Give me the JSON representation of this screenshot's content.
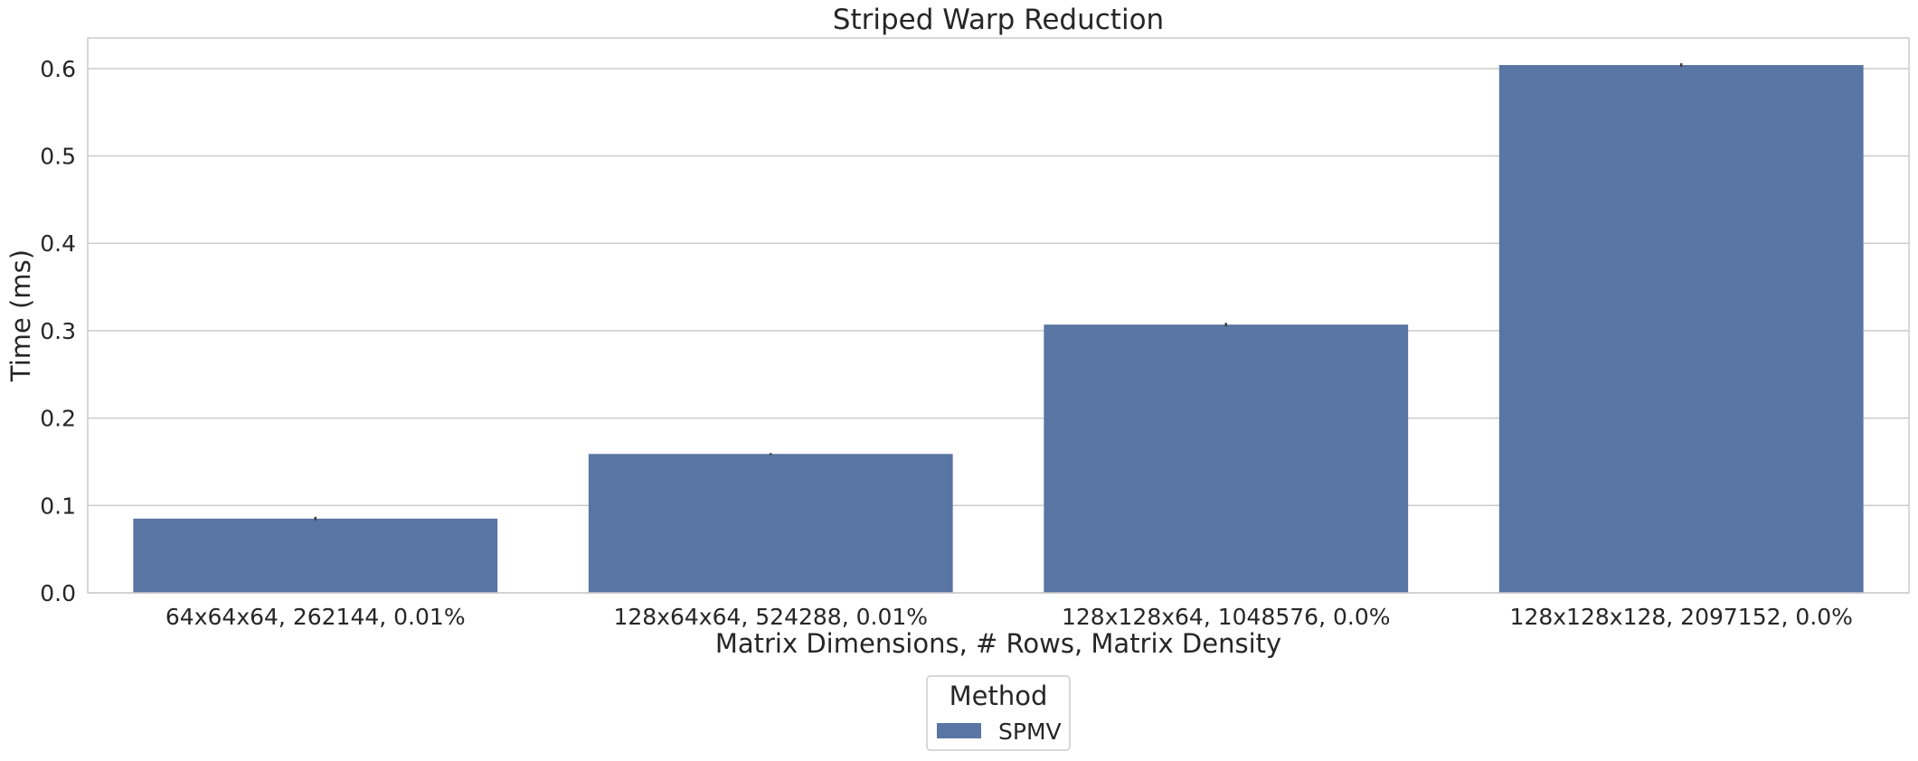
{
  "chart_data": {
    "type": "bar",
    "title": "Striped Warp Reduction",
    "xlabel": "Matrix Dimensions, # Rows, Matrix Density",
    "ylabel": "Time (ms)",
    "categories": [
      "64x64x64, 262144, 0.01%",
      "128x64x64, 524288, 0.01%",
      "128x128x64, 1048576, 0.0%",
      "128x128x128, 2097152, 0.0%"
    ],
    "series": [
      {
        "name": "SPMV",
        "values": [
          0.085,
          0.159,
          0.307,
          0.604
        ],
        "error": [
          0.002,
          0.001,
          0.002,
          0.002
        ]
      }
    ],
    "ylim": [
      0,
      0.635
    ],
    "yticks": [
      "0.0",
      "0.1",
      "0.2",
      "0.3",
      "0.4",
      "0.5",
      "0.6"
    ],
    "ytick_values": [
      0,
      0.1,
      0.2,
      0.3,
      0.4,
      0.5,
      0.6
    ],
    "grid": "horizontal",
    "legend": {
      "title": "Method",
      "placement": "bottom-center"
    },
    "colors": {
      "bar": "#5975a4",
      "grid": "#cccccc",
      "axis": "#cccccc",
      "text": "#262626",
      "errorbar": "#3d3d3d"
    }
  }
}
